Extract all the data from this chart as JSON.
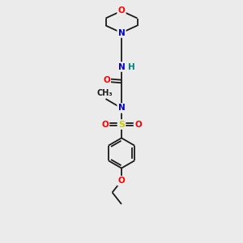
{
  "bg_color": "#ebebeb",
  "bond_color": "#1a1a1a",
  "bond_width": 1.3,
  "atom_colors": {
    "O": "#ff0000",
    "N": "#0000cc",
    "S": "#cccc00",
    "C": "#1a1a1a",
    "H": "#008080"
  },
  "font_size": 7.5,
  "fig_width": 3.0,
  "fig_height": 3.0,
  "dpi": 100
}
